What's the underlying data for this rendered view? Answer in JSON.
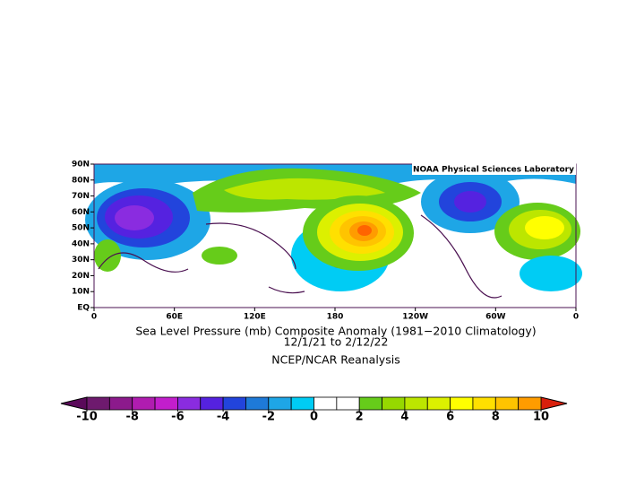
{
  "map": {
    "credit": "NOAA Physical Sciences Laboratory",
    "title": "Sea Level Pressure (mb) Composite Anomaly (1981−2010 Climatology)",
    "dates": "12/1/21   to 2/12/22",
    "source": "NCEP/NCAR Reanalysis",
    "xlim": [
      0,
      360
    ],
    "ylim": [
      0,
      90
    ],
    "xticks": [
      0,
      {
        "value": 60,
        "label": "60E"
      },
      {
        "value": 120,
        "label": "120E"
      },
      180,
      {
        "value": 240,
        "label": "120W"
      },
      {
        "value": 300,
        "label": "60W"
      },
      {
        "value": 360,
        "label": "0"
      }
    ],
    "yticks": [
      {
        "value": 90,
        "label": "90N"
      },
      {
        "value": 80,
        "label": "80N"
      },
      {
        "value": 70,
        "label": "70N"
      },
      {
        "value": 60,
        "label": "60N"
      },
      {
        "value": 50,
        "label": "50N"
      },
      {
        "value": 40,
        "label": "40N"
      },
      {
        "value": 30,
        "label": "30N"
      },
      {
        "value": 20,
        "label": "20N"
      },
      {
        "value": 10,
        "label": "10N"
      },
      {
        "value": 0,
        "label": "EQ"
      }
    ]
  },
  "colorbar": {
    "lim": [
      -10,
      10
    ],
    "ticks": [
      -10,
      -8,
      -6,
      -4,
      -2,
      0,
      2,
      4,
      6,
      8,
      10
    ],
    "under_color": "#5a0a5a",
    "over_color": "#d8200c",
    "colors": [
      "#6e1a6e",
      "#8c1a8c",
      "#b01cb0",
      "#c21ecc",
      "#8a2ce0",
      "#5522e0",
      "#2244dc",
      "#1e7ad8",
      "#1ea6e6",
      "#00ccf4",
      "#ffffff",
      "#ffffff",
      "#66cc1a",
      "#96d800",
      "#bce600",
      "#dcf000",
      "#ffff00",
      "#ffe000",
      "#ffc400",
      "#ff9c00",
      "#ff6400"
    ]
  }
}
